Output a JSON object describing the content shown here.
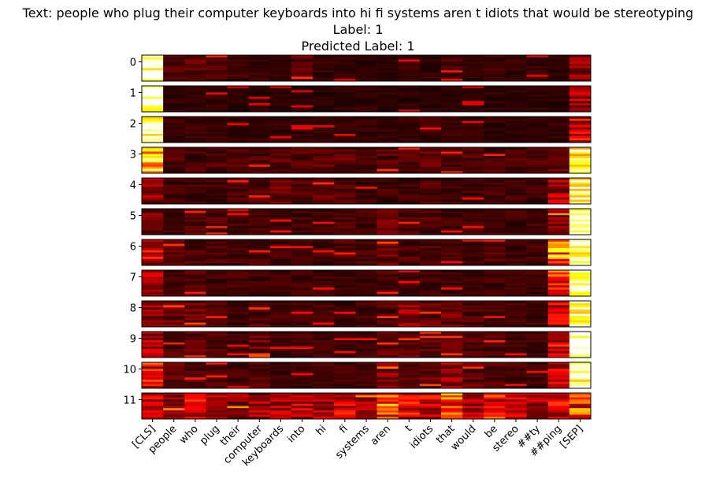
{
  "chart_data": {
    "type": "heatmap",
    "title": "Text: people who plug their computer keyboards into hi fi systems aren t idiots that would be stereotyping",
    "subtitle_1": "Label: 1",
    "subtitle_2": "Predicted Label: 1",
    "colormap": "hot",
    "tokens": [
      "[CLS]",
      "people",
      "who",
      "plug",
      "their",
      "computer",
      "keyboards",
      "into",
      "hi",
      "fi",
      "systems",
      "aren",
      "t",
      "idiots",
      "that",
      "would",
      "be",
      "stereo",
      "##ty",
      "##ping",
      "[SEP]"
    ],
    "layers": [
      "0",
      "1",
      "2",
      "3",
      "4",
      "5",
      "6",
      "7",
      "8",
      "9",
      "10",
      "11"
    ],
    "heads_per_layer": 12,
    "value_range": [
      0,
      1
    ],
    "layer_summary": [
      {
        "layer": "0",
        "values": [
          0.88,
          0.1,
          0.12,
          0.1,
          0.08,
          0.07,
          0.06,
          0.12,
          0.06,
          0.06,
          0.05,
          0.05,
          0.07,
          0.06,
          0.09,
          0.06,
          0.08,
          0.06,
          0.06,
          0.05,
          0.18
        ]
      },
      {
        "layer": "1",
        "values": [
          0.95,
          0.06,
          0.06,
          0.06,
          0.05,
          0.05,
          0.05,
          0.05,
          0.05,
          0.06,
          0.06,
          0.06,
          0.05,
          0.05,
          0.05,
          0.05,
          0.06,
          0.05,
          0.05,
          0.05,
          0.25
        ]
      },
      {
        "layer": "2",
        "values": [
          0.92,
          0.07,
          0.07,
          0.06,
          0.06,
          0.06,
          0.06,
          0.06,
          0.06,
          0.06,
          0.06,
          0.06,
          0.06,
          0.08,
          0.07,
          0.06,
          0.06,
          0.06,
          0.06,
          0.06,
          0.3
        ]
      },
      {
        "layer": "3",
        "values": [
          0.7,
          0.1,
          0.1,
          0.1,
          0.1,
          0.1,
          0.12,
          0.1,
          0.12,
          0.12,
          0.1,
          0.12,
          0.1,
          0.12,
          0.1,
          0.1,
          0.1,
          0.1,
          0.1,
          0.12,
          0.75
        ]
      },
      {
        "layer": "4",
        "values": [
          0.2,
          0.08,
          0.08,
          0.08,
          0.1,
          0.1,
          0.14,
          0.1,
          0.12,
          0.1,
          0.08,
          0.08,
          0.08,
          0.1,
          0.08,
          0.08,
          0.08,
          0.08,
          0.08,
          0.25,
          0.9
        ]
      },
      {
        "layer": "5",
        "values": [
          0.15,
          0.08,
          0.1,
          0.1,
          0.08,
          0.1,
          0.08,
          0.08,
          0.08,
          0.1,
          0.08,
          0.14,
          0.1,
          0.1,
          0.08,
          0.08,
          0.08,
          0.08,
          0.08,
          0.2,
          0.92
        ]
      },
      {
        "layer": "6",
        "values": [
          0.3,
          0.12,
          0.1,
          0.1,
          0.08,
          0.1,
          0.08,
          0.08,
          0.08,
          0.1,
          0.1,
          0.14,
          0.1,
          0.1,
          0.08,
          0.08,
          0.1,
          0.08,
          0.08,
          0.55,
          0.9
        ]
      },
      {
        "layer": "7",
        "values": [
          0.25,
          0.1,
          0.1,
          0.08,
          0.08,
          0.08,
          0.08,
          0.08,
          0.08,
          0.08,
          0.08,
          0.1,
          0.08,
          0.08,
          0.08,
          0.08,
          0.08,
          0.08,
          0.08,
          0.45,
          0.95
        ]
      },
      {
        "layer": "8",
        "values": [
          0.2,
          0.14,
          0.14,
          0.1,
          0.08,
          0.12,
          0.08,
          0.08,
          0.08,
          0.08,
          0.08,
          0.12,
          0.2,
          0.12,
          0.14,
          0.1,
          0.08,
          0.08,
          0.08,
          0.3,
          0.92
        ]
      },
      {
        "layer": "9",
        "values": [
          0.22,
          0.1,
          0.12,
          0.1,
          0.08,
          0.14,
          0.08,
          0.08,
          0.08,
          0.08,
          0.08,
          0.12,
          0.12,
          0.12,
          0.12,
          0.1,
          0.1,
          0.08,
          0.08,
          0.3,
          0.97
        ]
      },
      {
        "layer": "10",
        "values": [
          0.35,
          0.12,
          0.1,
          0.1,
          0.08,
          0.1,
          0.08,
          0.08,
          0.08,
          0.08,
          0.08,
          0.18,
          0.12,
          0.14,
          0.2,
          0.12,
          0.1,
          0.08,
          0.08,
          0.25,
          0.9
        ]
      },
      {
        "layer": "11",
        "values": [
          0.25,
          0.2,
          0.3,
          0.22,
          0.2,
          0.22,
          0.28,
          0.3,
          0.22,
          0.3,
          0.2,
          0.45,
          0.35,
          0.3,
          0.45,
          0.25,
          0.35,
          0.25,
          0.22,
          0.3,
          0.45
        ]
      }
    ]
  }
}
